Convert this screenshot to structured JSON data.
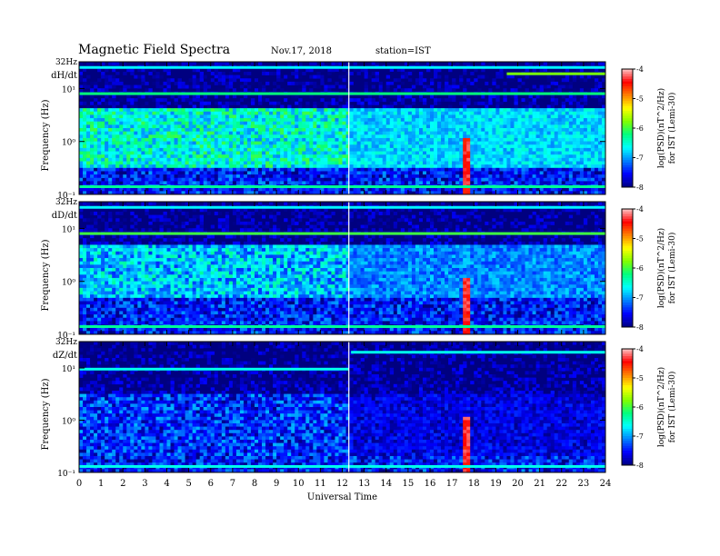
{
  "header": {
    "title": "Magnetic Field Spectra",
    "date": "Nov.17, 2018",
    "station": "station=IST"
  },
  "colors": {
    "colormap": [
      "#000080",
      "#0000ff",
      "#0080ff",
      "#00ffff",
      "#00ff80",
      "#80ff00",
      "#ffff00",
      "#ff8000",
      "#ff0000",
      "#ffc8c8"
    ]
  },
  "chart_data": [
    {
      "type": "heatmap",
      "panel_label": "dH/dt",
      "top_label": "32Hz",
      "ylabel": "Frequency (Hz)",
      "yscale": "log",
      "ylim": [
        0.1,
        32
      ],
      "y_ticks": [
        {
          "value": 10,
          "label": "10¹"
        },
        {
          "value": 1,
          "label": "10⁰"
        },
        {
          "value": 0.1,
          "label": "10⁻¹"
        }
      ],
      "xlim": [
        0,
        24
      ],
      "colorbar": {
        "label_line1": "log(PSD)(nT^2/Hz)",
        "label_line2": "for IST (Lemi-30)",
        "range": [
          -8,
          -4
        ],
        "ticks": [
          "-4",
          "-5",
          "-6",
          "-7",
          "-8"
        ]
      },
      "features": {
        "gap_hour": 12.3,
        "lines": [
          {
            "freq": 25,
            "level": -6.7
          },
          {
            "freq": 8,
            "level": -6.2
          },
          {
            "freq": 0.14,
            "level": -6.3
          }
        ],
        "activity_band": {
          "from": 0.3,
          "to": 4,
          "level": -6.3
        },
        "storm_hour": 17.7,
        "late_line": {
          "freq": 19,
          "from_hour": 19.5
        }
      }
    },
    {
      "type": "heatmap",
      "panel_label": "dD/dt",
      "top_label": "32Hz",
      "ylabel": "Frequency (Hz)",
      "yscale": "log",
      "ylim": [
        0.1,
        32
      ],
      "y_ticks": [
        {
          "value": 10,
          "label": "10¹"
        },
        {
          "value": 1,
          "label": "10⁰"
        },
        {
          "value": 0.1,
          "label": "10⁻¹"
        }
      ],
      "xlim": [
        0,
        24
      ],
      "colorbar": {
        "label_line1": "log(PSD)(nT^2/Hz)",
        "label_line2": "for IST (Lemi-30)",
        "range": [
          -8,
          -4
        ],
        "ticks": [
          "-4",
          "-5",
          "-6",
          "-7",
          "-8"
        ]
      },
      "features": {
        "gap_hour": 12.3,
        "lines": [
          {
            "freq": 25,
            "level": -6.7
          },
          {
            "freq": 8,
            "level": -6.0
          },
          {
            "freq": 0.14,
            "level": -6.3
          }
        ],
        "activity_band": {
          "from": 0.5,
          "to": 5,
          "level": -6.6
        },
        "storm_hour": 17.7
      }
    },
    {
      "type": "heatmap",
      "panel_label": "dZ/dt",
      "top_label": "32Hz",
      "ylabel": "Frequency (Hz)",
      "yscale": "log",
      "ylim": [
        0.1,
        32
      ],
      "y_ticks": [
        {
          "value": 10,
          "label": "10¹"
        },
        {
          "value": 1,
          "label": "10⁰"
        },
        {
          "value": 0.1,
          "label": "10⁻¹"
        }
      ],
      "xlim": [
        0,
        24
      ],
      "xlabel": "Universal Time",
      "x_ticks": [
        "0",
        "1",
        "2",
        "3",
        "4",
        "5",
        "6",
        "7",
        "8",
        "9",
        "10",
        "11",
        "12",
        "13",
        "14",
        "15",
        "16",
        "17",
        "18",
        "19",
        "20",
        "21",
        "22",
        "23",
        "24"
      ],
      "colorbar": {
        "label_line1": "log(PSD)(nT^2/Hz)",
        "label_line2": "for IST (Lemi-30)",
        "range": [
          -8,
          -4
        ],
        "ticks": [
          "-4",
          "-5",
          "-6",
          "-7",
          "-8"
        ]
      },
      "features": {
        "gap_hour": 12.3,
        "lines": [
          {
            "freq": 9.5,
            "level": -6.6,
            "to_hour": 12.3
          },
          {
            "freq": 20,
            "level": -6.6,
            "from_hour": 12.4
          },
          {
            "freq": 0.13,
            "level": -6.6
          }
        ],
        "activity_band": {
          "from": 0.2,
          "to": 3,
          "level": -7.2
        },
        "storm_hour": 17.7
      }
    }
  ]
}
